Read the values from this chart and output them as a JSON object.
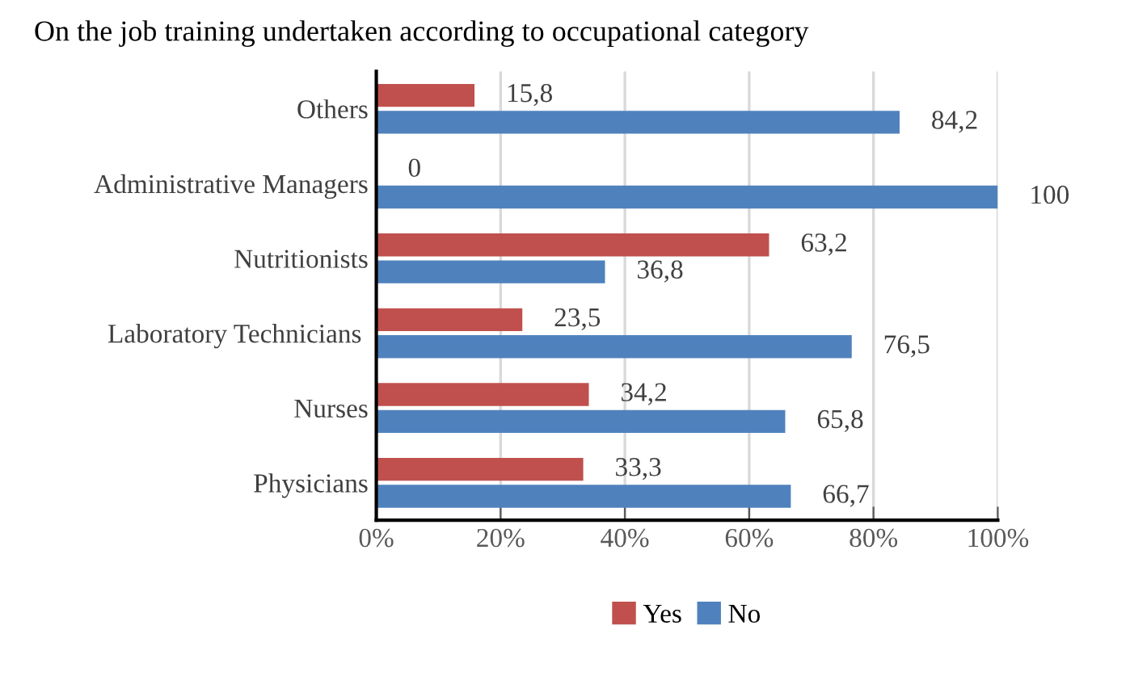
{
  "chart_data": {
    "type": "bar",
    "orientation": "horizontal",
    "title": "On the job training undertaken according to occupational category",
    "categories": [
      "Others",
      "Administrative Managers",
      "Nutritionists",
      "Laboratory Technicians ",
      "Nurses",
      "Physicians"
    ],
    "series": [
      {
        "name": "Yes",
        "color": "#c0504d",
        "values": [
          15.8,
          0,
          63.2,
          23.5,
          34.2,
          33.3
        ],
        "value_labels": [
          "15,8",
          "0",
          "63,2",
          "23,5",
          "34,2",
          "33,3"
        ]
      },
      {
        "name": "No",
        "color": "#4f81bd",
        "values": [
          84.2,
          100,
          36.8,
          76.5,
          65.8,
          66.7
        ],
        "value_labels": [
          "84,2",
          "100",
          "36,8",
          "76,5",
          "65,8",
          "66,7"
        ]
      }
    ],
    "xlim": [
      0,
      100
    ],
    "xticks": [
      {
        "value": 0,
        "label": "0%"
      },
      {
        "value": 20,
        "label": "20%"
      },
      {
        "value": 40,
        "label": "40%"
      },
      {
        "value": 60,
        "label": "60%"
      },
      {
        "value": 80,
        "label": "80%"
      },
      {
        "value": 100,
        "label": "100%"
      }
    ],
    "grid": "x",
    "legend": "bottom"
  }
}
